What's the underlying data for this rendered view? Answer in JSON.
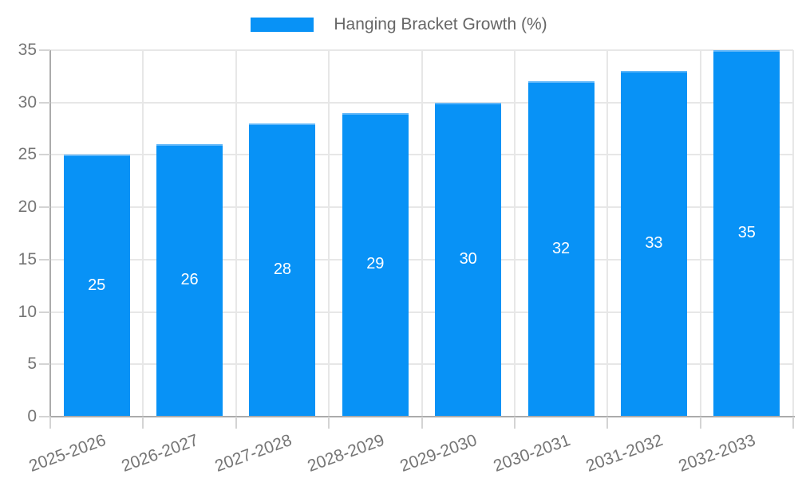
{
  "legend": {
    "label": "Hanging Bracket Growth (%)"
  },
  "chart_data": {
    "type": "bar",
    "title": "",
    "series_name": "Hanging Bracket Growth (%)",
    "categories": [
      "2025-2026",
      "2026-2027",
      "2027-2028",
      "2028-2029",
      "2029-2030",
      "2030-2031",
      "2031-2032",
      "2032-2033"
    ],
    "values": [
      25,
      26,
      28,
      29,
      30,
      32,
      33,
      35
    ],
    "value_labels": [
      "25",
      "26",
      "28",
      "29",
      "30",
      "32",
      "33",
      "35"
    ],
    "xlabel": "",
    "ylabel": "",
    "ylim": [
      0,
      35
    ],
    "yticks": [
      0,
      5,
      10,
      15,
      20,
      25,
      30,
      35
    ],
    "ytick_labels": [
      "0",
      "5",
      "10",
      "15",
      "20",
      "25",
      "30",
      "35"
    ],
    "grid": true,
    "legend_position": "top-center",
    "value_label_position": "inside-center",
    "x_label_rotation_deg": -20
  },
  "colors": {
    "background": "#ffffff",
    "bar": "#0892f6",
    "bar_border": "#5eb6f9",
    "grid": "#e7e7e7",
    "axis": "#ababab",
    "tick": "#d4d4d4",
    "label": "#757575",
    "legend_text": "#666666",
    "value_label": "#ffffff"
  }
}
